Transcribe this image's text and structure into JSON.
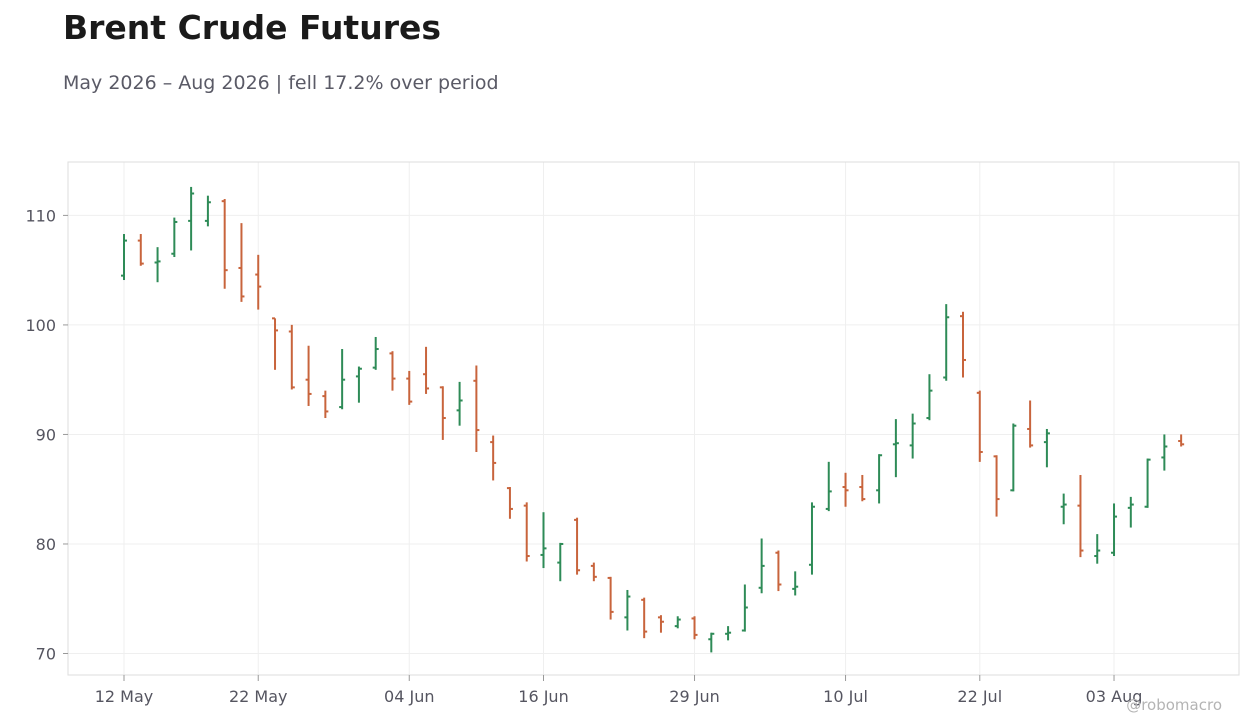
{
  "header": {
    "title": "Brent Crude Futures",
    "subtitle": "May 2026 – Aug 2026 | fell 17.2% over period"
  },
  "watermark": "@robomacro",
  "colors": {
    "up": "#2e8b57",
    "down": "#c8643c",
    "grid": "#efefef",
    "frame": "#dddddd"
  },
  "chart_data": {
    "type": "ohlc",
    "title": "Brent Crude Futures",
    "subtitle": "May 2026 – Aug 2026 | fell 17.2% over period",
    "xlabel": "",
    "ylabel": "",
    "ylim": [
      68,
      115
    ],
    "yticks": [
      70,
      80,
      90,
      100,
      110
    ],
    "xticks": [
      "12 May",
      "22 May",
      "04 Jun",
      "16 Jun",
      "29 Jun",
      "10 Jul",
      "22 Jul",
      "03 Aug"
    ],
    "grid": true,
    "series": [
      {
        "bars": [
          {
            "date": "12 May",
            "o": 104.5,
            "h": 108.3,
            "l": 104.1,
            "c": 107.7
          },
          {
            "date": "13 May",
            "o": 107.7,
            "h": 108.3,
            "l": 105.4,
            "c": 105.6
          },
          {
            "date": "14 May",
            "o": 105.7,
            "h": 107.1,
            "l": 103.9,
            "c": 105.8
          },
          {
            "date": "15 May",
            "o": 106.5,
            "h": 109.8,
            "l": 106.2,
            "c": 109.4
          },
          {
            "date": "18 May",
            "o": 109.5,
            "h": 112.6,
            "l": 106.8,
            "c": 112.0
          },
          {
            "date": "19 May",
            "o": 109.5,
            "h": 111.8,
            "l": 109.0,
            "c": 111.2
          },
          {
            "date": "20 May",
            "o": 111.3,
            "h": 111.5,
            "l": 103.3,
            "c": 105.0
          },
          {
            "date": "21 May",
            "o": 105.2,
            "h": 109.3,
            "l": 102.1,
            "c": 102.6
          },
          {
            "date": "22 May",
            "o": 104.6,
            "h": 106.4,
            "l": 101.4,
            "c": 103.5
          },
          {
            "date": "25 May",
            "o": 100.6,
            "h": 100.6,
            "l": 95.9,
            "c": 99.5
          },
          {
            "date": "26 May",
            "o": 99.4,
            "h": 100.0,
            "l": 94.1,
            "c": 94.3
          },
          {
            "date": "27 May",
            "o": 95.0,
            "h": 98.1,
            "l": 92.6,
            "c": 93.7
          },
          {
            "date": "28 May",
            "o": 93.5,
            "h": 94.0,
            "l": 91.5,
            "c": 92.1
          },
          {
            "date": "29 May",
            "o": 92.5,
            "h": 97.8,
            "l": 92.3,
            "c": 95.0
          },
          {
            "date": "01 Jun",
            "o": 95.3,
            "h": 96.2,
            "l": 92.9,
            "c": 96.0
          },
          {
            "date": "02 Jun",
            "o": 96.1,
            "h": 98.9,
            "l": 95.9,
            "c": 97.8
          },
          {
            "date": "03 Jun",
            "o": 97.4,
            "h": 97.6,
            "l": 94.0,
            "c": 95.1
          },
          {
            "date": "04 Jun",
            "o": 95.1,
            "h": 95.8,
            "l": 92.7,
            "c": 93.0
          },
          {
            "date": "05 Jun",
            "o": 95.5,
            "h": 98.0,
            "l": 93.7,
            "c": 94.2
          },
          {
            "date": "08 Jun",
            "o": 94.3,
            "h": 94.4,
            "l": 89.5,
            "c": 91.5
          },
          {
            "date": "09 Jun",
            "o": 92.2,
            "h": 94.8,
            "l": 90.8,
            "c": 93.1
          },
          {
            "date": "10 Jun",
            "o": 94.9,
            "h": 96.3,
            "l": 88.4,
            "c": 90.4
          },
          {
            "date": "11 Jun",
            "o": 89.3,
            "h": 89.9,
            "l": 85.8,
            "c": 87.4
          },
          {
            "date": "12 Jun",
            "o": 85.1,
            "h": 85.2,
            "l": 82.3,
            "c": 83.2
          },
          {
            "date": "15 Jun",
            "o": 83.5,
            "h": 83.8,
            "l": 78.4,
            "c": 78.9
          },
          {
            "date": "16 Jun",
            "o": 79.0,
            "h": 82.9,
            "l": 77.8,
            "c": 79.6
          },
          {
            "date": "17 Jun",
            "o": 78.3,
            "h": 80.1,
            "l": 76.6,
            "c": 80.0
          },
          {
            "date": "18 Jun",
            "o": 82.2,
            "h": 82.4,
            "l": 77.2,
            "c": 77.6
          },
          {
            "date": "19 Jun",
            "o": 78.0,
            "h": 78.3,
            "l": 76.6,
            "c": 77.0
          },
          {
            "date": "22 Jun",
            "o": 76.9,
            "h": 77.0,
            "l": 73.1,
            "c": 73.8
          },
          {
            "date": "23 Jun",
            "o": 73.3,
            "h": 75.8,
            "l": 72.1,
            "c": 75.2
          },
          {
            "date": "24 Jun",
            "o": 74.9,
            "h": 75.1,
            "l": 71.4,
            "c": 72.0
          },
          {
            "date": "25 Jun",
            "o": 73.3,
            "h": 73.5,
            "l": 71.9,
            "c": 72.9
          },
          {
            "date": "26 Jun",
            "o": 72.5,
            "h": 73.4,
            "l": 72.3,
            "c": 73.1
          },
          {
            "date": "29 Jun",
            "o": 73.2,
            "h": 73.4,
            "l": 71.3,
            "c": 71.7
          },
          {
            "date": "30 Jun",
            "o": 71.3,
            "h": 71.9,
            "l": 70.1,
            "c": 71.8
          },
          {
            "date": "01 Jul",
            "o": 71.8,
            "h": 72.5,
            "l": 71.2,
            "c": 71.9
          },
          {
            "date": "02 Jul",
            "o": 72.1,
            "h": 76.3,
            "l": 72.0,
            "c": 74.2
          },
          {
            "date": "03 Jul",
            "o": 76.0,
            "h": 80.5,
            "l": 75.5,
            "c": 78.0
          },
          {
            "date": "06 Jul",
            "o": 79.2,
            "h": 79.4,
            "l": 75.7,
            "c": 76.3
          },
          {
            "date": "07 Jul",
            "o": 75.9,
            "h": 77.5,
            "l": 75.3,
            "c": 76.1
          },
          {
            "date": "08 Jul",
            "o": 78.1,
            "h": 83.8,
            "l": 77.2,
            "c": 83.4
          },
          {
            "date": "09 Jul",
            "o": 83.2,
            "h": 87.5,
            "l": 83.0,
            "c": 84.8
          },
          {
            "date": "10 Jul",
            "o": 85.2,
            "h": 86.5,
            "l": 83.4,
            "c": 84.9
          },
          {
            "date": "13 Jul",
            "o": 85.2,
            "h": 86.3,
            "l": 83.9,
            "c": 84.1
          },
          {
            "date": "14 Jul",
            "o": 84.9,
            "h": 88.2,
            "l": 83.7,
            "c": 88.1
          },
          {
            "date": "15 Jul",
            "o": 89.1,
            "h": 91.4,
            "l": 86.1,
            "c": 89.2
          },
          {
            "date": "16 Jul",
            "o": 89.0,
            "h": 91.9,
            "l": 87.8,
            "c": 91.0
          },
          {
            "date": "17 Jul",
            "o": 91.5,
            "h": 95.5,
            "l": 91.3,
            "c": 94.0
          },
          {
            "date": "20 Jul",
            "o": 95.2,
            "h": 101.9,
            "l": 94.9,
            "c": 100.7
          },
          {
            "date": "21 Jul",
            "o": 100.8,
            "h": 101.2,
            "l": 95.2,
            "c": 96.8
          },
          {
            "date": "22 Jul",
            "o": 93.8,
            "h": 94.0,
            "l": 87.5,
            "c": 88.4
          },
          {
            "date": "23 Jul",
            "o": 88.0,
            "h": 88.1,
            "l": 82.5,
            "c": 84.1
          },
          {
            "date": "24 Jul",
            "o": 84.9,
            "h": 91.0,
            "l": 84.8,
            "c": 90.8
          },
          {
            "date": "27 Jul",
            "o": 90.5,
            "h": 93.1,
            "l": 88.8,
            "c": 89.0
          },
          {
            "date": "28 Jul",
            "o": 89.3,
            "h": 90.5,
            "l": 87.0,
            "c": 90.1
          },
          {
            "date": "29 Jul",
            "o": 83.4,
            "h": 84.6,
            "l": 81.8,
            "c": 83.6
          },
          {
            "date": "30 Jul",
            "o": 83.5,
            "h": 86.3,
            "l": 78.8,
            "c": 79.4
          },
          {
            "date": "31 Jul",
            "o": 78.9,
            "h": 80.9,
            "l": 78.2,
            "c": 79.4
          },
          {
            "date": "03 Aug",
            "o": 79.2,
            "h": 83.7,
            "l": 78.9,
            "c": 82.5
          },
          {
            "date": "04 Aug",
            "o": 83.3,
            "h": 84.3,
            "l": 81.5,
            "c": 83.6
          },
          {
            "date": "05 Aug",
            "o": 83.4,
            "h": 87.8,
            "l": 83.3,
            "c": 87.7
          },
          {
            "date": "06 Aug",
            "o": 87.9,
            "h": 90.0,
            "l": 86.7,
            "c": 88.9
          },
          {
            "date": "07 Aug",
            "o": 89.4,
            "h": 90.0,
            "l": 88.9,
            "c": 89.1
          }
        ]
      }
    ]
  }
}
